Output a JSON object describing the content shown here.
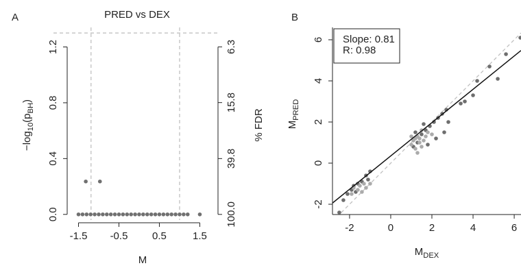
{
  "chart_data": [
    {
      "type": "scatter",
      "panel": "A",
      "title": "PRED vs DEX",
      "xlabel": "M",
      "ylabel": [
        "−log",
        "10",
        "(p",
        "BH",
        ")"
      ],
      "y2label": "% FDR",
      "xlim": [
        -1.78,
        1.95
      ],
      "xticks": [
        -1.5,
        -0.5,
        0.5,
        1.5
      ],
      "ylim": [
        -0.06,
        1.34
      ],
      "yticks": [
        {
          "value": 0,
          "label": "0.0"
        },
        0.4,
        0.8,
        1.2
      ],
      "y2scale": "log",
      "y2lim": [
        114.8,
        4.57
      ],
      "y2ticks": [
        {
          "value": 100,
          "label": "100.0"
        },
        39.8,
        15.8,
        6.3
      ],
      "hline": 1.3,
      "vlines": [
        -1.19,
        1.0
      ],
      "series": [
        {
          "color": "#707070",
          "x": [
            -1.5,
            -1.4,
            -1.3,
            -1.2,
            -1.1,
            -1.0,
            -0.9,
            -0.8,
            -0.7,
            -0.6,
            -0.5,
            -0.4,
            -0.3,
            -0.2,
            -0.1,
            0,
            0.1,
            0.2,
            0.3,
            0.4,
            0.5,
            0.6,
            0.7,
            0.8,
            0.9,
            1.0,
            1.1,
            1.2,
            1.5,
            -1.32,
            -0.97
          ],
          "values": [
            0,
            0,
            0,
            0,
            0,
            0,
            0,
            0,
            0,
            0,
            0,
            0,
            0,
            0,
            0,
            0,
            0,
            0,
            0,
            0,
            0,
            0,
            0,
            0,
            0,
            0,
            0,
            0,
            0,
            0.236,
            0.236
          ]
        }
      ]
    },
    {
      "type": "scatter",
      "panel": "B",
      "xlabel": [
        "M",
        "DEX"
      ],
      "ylabel": [
        "M",
        "PRED"
      ],
      "xlim": [
        -2.83,
        6.33
      ],
      "xticks": [
        -2,
        0,
        2,
        4,
        6
      ],
      "ylim": [
        -2.5,
        6.6
      ],
      "yticks": [
        -2,
        0,
        2,
        4,
        6
      ],
      "annotations": [
        "Slope: 0.81",
        "R: 0.98"
      ],
      "identity_line": true,
      "fit_line": {
        "slope": 0.81,
        "intercept": 0.35
      },
      "series": [
        {
          "color": "#6e6e6e",
          "x": [
            -2.3,
            -2.1,
            -1.9,
            -1.8,
            -1.6,
            -1.4,
            -1.2,
            -1.0,
            -1.1,
            -1.7,
            -2.5,
            1.1,
            1.3,
            1.5,
            1.7,
            1.9,
            2.1,
            2.3,
            2.5,
            2.7,
            2.8,
            2.6,
            2.2,
            1.8,
            1.6,
            1.2,
            3.4,
            3.6,
            4.0,
            4.2,
            4.8,
            5.2,
            5.6,
            6.3
          ],
          "values": [
            -1.8,
            -1.5,
            -1.3,
            -1.1,
            -1.0,
            -0.9,
            -0.6,
            -0.4,
            -0.8,
            -1.4,
            -2.4,
            0.8,
            1.0,
            1.4,
            1.6,
            1.8,
            2.0,
            2.2,
            2.4,
            2.6,
            2.0,
            1.5,
            1.2,
            0.9,
            1.9,
            1.5,
            2.9,
            3.0,
            3.3,
            4.0,
            4.7,
            4.1,
            5.3,
            6.1
          ]
        },
        {
          "color": "#ababab",
          "x": [
            -1.9,
            -1.6,
            -1.5,
            -1.3,
            -1.2,
            -1.4,
            -1.0,
            -1.8,
            1.0,
            1.1,
            1.2,
            1.3,
            1.4,
            1.4,
            1.5,
            1.6,
            1.7,
            1.8,
            1.2,
            1.0,
            1.5,
            2.0,
            1.3
          ],
          "values": [
            -1.5,
            -1.3,
            -1.1,
            -1.0,
            -1.2,
            -1.4,
            -1.0,
            -1.2,
            0.9,
            1.1,
            0.7,
            1.3,
            1.0,
            1.2,
            0.8,
            1.1,
            1.3,
            1.5,
            1.2,
            1.3,
            1.6,
            1.4,
            0.5
          ]
        }
      ]
    }
  ]
}
